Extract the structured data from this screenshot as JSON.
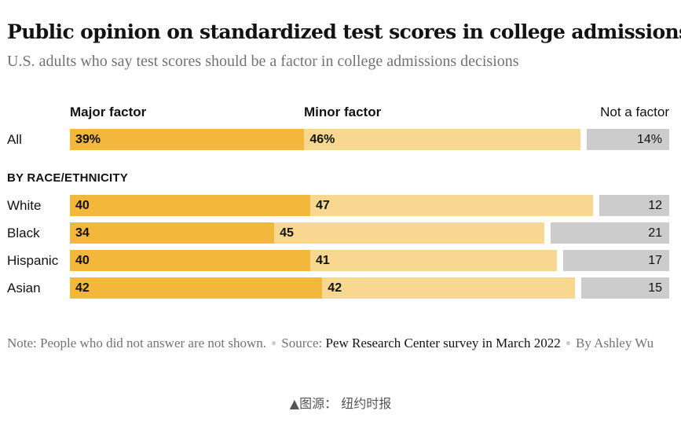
{
  "title": "Public opinion on standardized test scores in college admissions",
  "subtitle": "U.S. adults who say test scores should be a factor in college admissions decisions",
  "legend": {
    "major": "Major factor",
    "minor": "Minor factor",
    "not": "Not a factor"
  },
  "section_label": "BY RACE/ETHNICITY",
  "colors": {
    "major": "#f2b73b",
    "minor": "#f8d890",
    "not": "#cccccc"
  },
  "note": {
    "text": "Note: People who did not answer are not shown.",
    "source_label": "Source:",
    "source": "Pew Research Center survey in March 2022",
    "byline": "By Ashley Wu"
  },
  "image_caption": "▲图源： 纽约时报",
  "chart_data": {
    "type": "bar",
    "stacked": true,
    "orientation": "horizontal",
    "categories": [
      "All",
      "White",
      "Black",
      "Hispanic",
      "Asian"
    ],
    "series": [
      {
        "name": "Major factor",
        "values": [
          39,
          40,
          34,
          40,
          42
        ],
        "labels": [
          "39%",
          "40",
          "34",
          "40",
          "42"
        ]
      },
      {
        "name": "Minor factor",
        "values": [
          46,
          47,
          45,
          41,
          42
        ],
        "labels": [
          "46%",
          "47",
          "45",
          "41",
          "42"
        ]
      },
      {
        "name": "Not a factor",
        "values": [
          14,
          12,
          21,
          17,
          15
        ],
        "labels": [
          "14%",
          "12",
          "21",
          "17",
          "15"
        ]
      }
    ]
  }
}
